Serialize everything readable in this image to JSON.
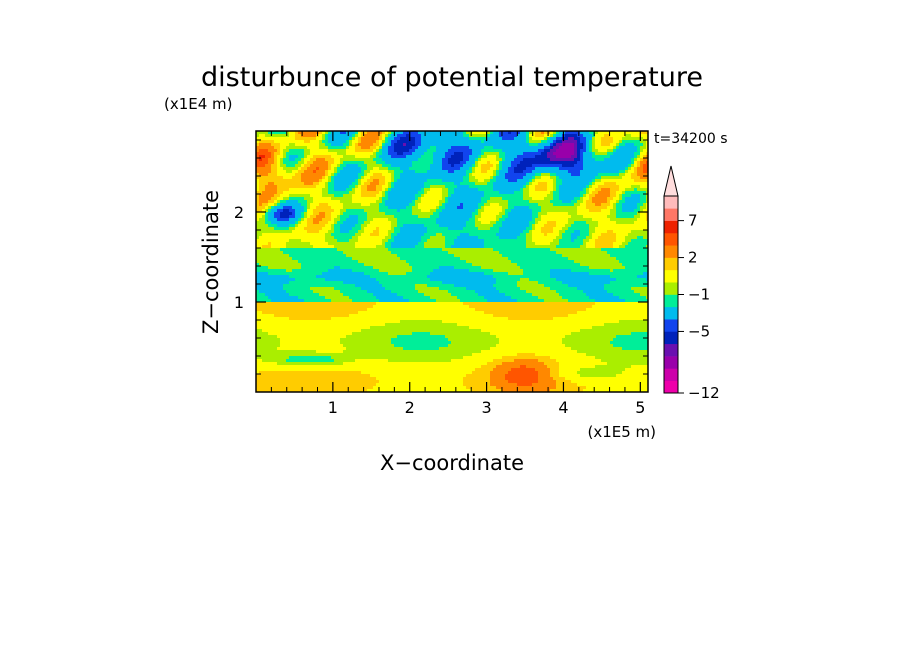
{
  "chart_data": {
    "type": "heatmap",
    "title": "disturbunce of potential temperature",
    "timestamp": "t=34200 s",
    "xlabel": "X−coordinate",
    "ylabel": "Z−coordinate",
    "x_unit": "(x1E5 m)",
    "y_unit": "(x1E4 m)",
    "xlim": [
      0,
      5.1
    ],
    "ylim": [
      0,
      2.9
    ],
    "x_ticks": [
      {
        "value": 1,
        "label": "1"
      },
      {
        "value": 2,
        "label": "2"
      },
      {
        "value": 3,
        "label": "3"
      },
      {
        "value": 4,
        "label": "4"
      },
      {
        "value": 5,
        "label": "5"
      }
    ],
    "y_ticks": [
      {
        "value": 1,
        "label": "1"
      },
      {
        "value": 2,
        "label": "2"
      }
    ],
    "colorbar": {
      "levels_bottom_to_top": [
        {
          "color": "#ee00aa"
        },
        {
          "color": "#cc00aa"
        },
        {
          "color": "#9900aa"
        },
        {
          "color": "#6a10b0"
        },
        {
          "color": "#0022bb"
        },
        {
          "color": "#1144ee"
        },
        {
          "color": "#00bbee"
        },
        {
          "color": "#00ee99"
        },
        {
          "color": "#aaee00"
        },
        {
          "color": "#ffff00"
        },
        {
          "color": "#ffcc00"
        },
        {
          "color": "#ff8800"
        },
        {
          "color": "#ff5500"
        },
        {
          "color": "#ee2200"
        },
        {
          "color": "#ff7766"
        },
        {
          "color": "#ffbbbb"
        }
      ],
      "overflow_color": "#ffdddd",
      "tick_labels": [
        {
          "boundary": 0,
          "label": "−12"
        },
        {
          "boundary": 5,
          "label": "−5"
        },
        {
          "boundary": 8,
          "label": "−1"
        },
        {
          "boundary": 11,
          "label": "2"
        },
        {
          "boundary": 14,
          "label": "7"
        }
      ]
    },
    "field_description": "Layered temperature perturbation field; upper layer above z≈1.6 shows alternating warm (orange/red) and cold (blue) wave cells, strongest cold anomaly near x≈4, z≈2.6; middle layer z≈1.1–1.5 near zero (green); lower layer below z≈1 warm (yellow/orange) with warm maximum near x≈3.5, z≈0.2."
  }
}
